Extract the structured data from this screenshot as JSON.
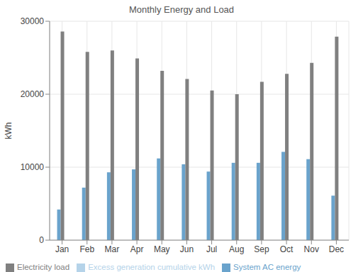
{
  "chart_data": {
    "type": "bar",
    "title": "Monthly Energy and Load",
    "y_label": "kWh",
    "categories": [
      "Jan",
      "Feb",
      "Mar",
      "Apr",
      "May",
      "Jun",
      "Jul",
      "Aug",
      "Sep",
      "Oct",
      "Nov",
      "Dec"
    ],
    "series": [
      {
        "name": "System AC energy",
        "color": "#6aa3cc",
        "values": [
          4200,
          7200,
          9300,
          9700,
          11200,
          10400,
          9400,
          10600,
          10600,
          12100,
          11100,
          6100
        ]
      },
      {
        "name": "Electricity load",
        "color": "#808080",
        "values": [
          28600,
          25800,
          26000,
          24900,
          23200,
          22100,
          20500,
          20000,
          21700,
          22800,
          24300,
          27900
        ]
      },
      {
        "name": "Excess generation cumulative kWh",
        "color": "#b5d3e9",
        "values": [
          0,
          0,
          0,
          0,
          0,
          0,
          0,
          0,
          0,
          0,
          0,
          0
        ]
      }
    ],
    "ylim": [
      0,
      30000
    ],
    "yticks": [
      0,
      10000,
      20000,
      30000
    ],
    "grid": true,
    "legend": "bottom"
  }
}
